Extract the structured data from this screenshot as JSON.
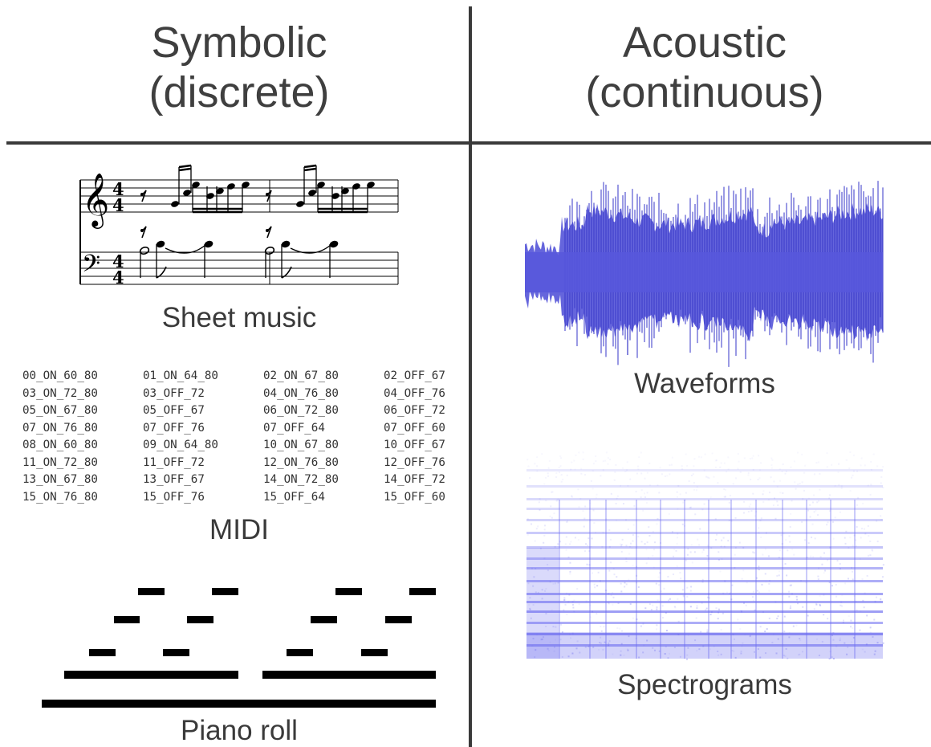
{
  "columns": {
    "symbolic": {
      "title": "Symbolic",
      "subtitle": "(discrete)"
    },
    "acoustic": {
      "title": "Acoustic",
      "subtitle": "(continuous)"
    }
  },
  "labels": {
    "sheet_music": "Sheet music",
    "midi": "MIDI",
    "piano_roll": "Piano roll",
    "waveforms": "Waveforms",
    "spectrograms": "Spectrograms"
  },
  "sheet_music": {
    "time_signature_top": "4",
    "time_signature_bottom": "4"
  },
  "midi_tokens": [
    [
      "00_ON_60_80",
      "03_ON_72_80",
      "05_ON_67_80",
      "07_ON_76_80",
      "08_ON_60_80",
      "11_ON_72_80",
      "13_ON_67_80",
      "15_ON_76_80"
    ],
    [
      "01_ON_64_80",
      "03_OFF_72",
      "05_OFF_67",
      "07_OFF_76",
      "09_ON_64_80",
      "11_OFF_72",
      "13_OFF_67",
      "15_OFF_76"
    ],
    [
      "02_ON_67_80",
      "04_ON_76_80",
      "06_ON_72_80",
      "07_OFF_64",
      "10_ON_67_80",
      "12_ON_76_80",
      "14_ON_72_80",
      "15_OFF_64"
    ],
    [
      "02_OFF_67",
      "04_OFF_76",
      "06_OFF_72",
      "07_OFF_60",
      "10_OFF_67",
      "12_OFF_76",
      "14_OFF_72",
      "15_OFF_60"
    ]
  ],
  "colors": {
    "divider": "#3a3a3a",
    "waveform": "#4a4ad6",
    "spectrogram": "#6a6af0"
  }
}
